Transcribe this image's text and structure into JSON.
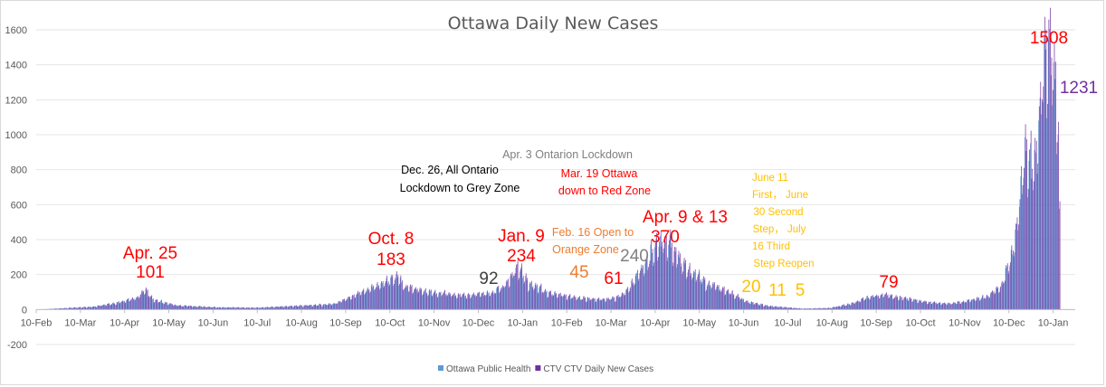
{
  "chart_data": {
    "type": "bar",
    "title": "Ottawa Daily New Cases",
    "xlabel": "",
    "ylabel": "",
    "ylim": [
      -200,
      1600
    ],
    "yticks": [
      -200,
      0,
      200,
      400,
      600,
      800,
      1000,
      1200,
      1400,
      1600
    ],
    "xtick_labels": [
      "10-Feb",
      "10-Mar",
      "10-Apr",
      "10-May",
      "10-Jun",
      "10-Jul",
      "10-Aug",
      "10-Sep",
      "10-Oct",
      "10-Nov",
      "10-Dec",
      "10-Jan",
      "10-Feb",
      "10-Mar",
      "10-Apr",
      "10-May",
      "10-Jun",
      "10-Jul",
      "10-Aug",
      "10-Sep",
      "10-Oct",
      "10-Nov",
      "10-Dec",
      "10-Jan"
    ],
    "grid": true,
    "legend_position": "bottom",
    "series": [
      {
        "name": "Ottawa Public Health",
        "color": "#5b9bd5"
      },
      {
        "name": "CTV CTV Daily New Cases",
        "color": "#7030a0"
      }
    ],
    "profile": [
      [
        0,
        0
      ],
      [
        20,
        8
      ],
      [
        40,
        15
      ],
      [
        60,
        40
      ],
      [
        72,
        65
      ],
      [
        78,
        101
      ],
      [
        84,
        50
      ],
      [
        100,
        22
      ],
      [
        130,
        12
      ],
      [
        160,
        10
      ],
      [
        190,
        20
      ],
      [
        215,
        30
      ],
      [
        235,
        95
      ],
      [
        245,
        125
      ],
      [
        255,
        150
      ],
      [
        260,
        183
      ],
      [
        266,
        120
      ],
      [
        285,
        90
      ],
      [
        310,
        75
      ],
      [
        330,
        92
      ],
      [
        340,
        130
      ],
      [
        348,
        234
      ],
      [
        355,
        150
      ],
      [
        368,
        100
      ],
      [
        380,
        75
      ],
      [
        395,
        60
      ],
      [
        410,
        55
      ],
      [
        420,
        61
      ],
      [
        428,
        100
      ],
      [
        440,
        240
      ],
      [
        448,
        330
      ],
      [
        455,
        370
      ],
      [
        460,
        340
      ],
      [
        470,
        230
      ],
      [
        485,
        140
      ],
      [
        500,
        100
      ],
      [
        515,
        40
      ],
      [
        530,
        20
      ],
      [
        545,
        11
      ],
      [
        555,
        5
      ],
      [
        575,
        8
      ],
      [
        590,
        30
      ],
      [
        605,
        70
      ],
      [
        615,
        79
      ],
      [
        630,
        60
      ],
      [
        645,
        40
      ],
      [
        660,
        30
      ],
      [
        675,
        45
      ],
      [
        690,
        70
      ],
      [
        700,
        130
      ],
      [
        708,
        300
      ],
      [
        713,
        600
      ],
      [
        718,
        880
      ],
      [
        723,
        750
      ],
      [
        728,
        1080
      ],
      [
        733,
        1508
      ],
      [
        737,
        1350
      ],
      [
        740,
        1231
      ],
      [
        742,
        500
      ]
    ],
    "annotations": [
      {
        "text": "Apr. 25",
        "color": "#ff0000"
      },
      {
        "text": "101",
        "color": "#ff0000"
      },
      {
        "text": "Oct. 8",
        "color": "#ff0000"
      },
      {
        "text": "183",
        "color": "#ff0000"
      },
      {
        "text": "92",
        "color": "#404040"
      },
      {
        "text": "Jan. 9",
        "color": "#ff0000"
      },
      {
        "text": "234",
        "color": "#ff0000"
      },
      {
        "text": "Feb. 16 Open to",
        "color": "#ed7d31"
      },
      {
        "text": "Orange Zone",
        "color": "#ed7d31"
      },
      {
        "text": "45",
        "color": "#ed7d31"
      },
      {
        "text": "61",
        "color": "#ff0000"
      },
      {
        "text": "240",
        "color": "#808080"
      },
      {
        "text": "Apr. 9 & 13",
        "color": "#ff0000"
      },
      {
        "text": "370",
        "color": "#ff0000"
      },
      {
        "text": "Apr. 3 Ontarion Lockdown",
        "color": "#808080"
      },
      {
        "text": "Dec. 26, All Ontario",
        "color": "#000000"
      },
      {
        "text": "Lockdown to Grey Zone",
        "color": "#000000"
      },
      {
        "text": "Mar. 19 Ottawa",
        "color": "#ff0000"
      },
      {
        "text": "down to Red Zone",
        "color": "#ff0000"
      },
      {
        "text": "June 11",
        "color": "#ffc000"
      },
      {
        "text": "First， June",
        "color": "#ffc000"
      },
      {
        "text": "30 Second",
        "color": "#ffc000"
      },
      {
        "text": "Step， July",
        "color": "#ffc000"
      },
      {
        "text": "16 Third",
        "color": "#ffc000"
      },
      {
        "text": "Step Reopen",
        "color": "#ffc000"
      },
      {
        "text": "20",
        "color": "#ffc000"
      },
      {
        "text": "11",
        "color": "#ffc000"
      },
      {
        "text": "5",
        "color": "#ffc000"
      },
      {
        "text": "79",
        "color": "#ff0000"
      },
      {
        "text": "1508",
        "color": "#ff0000"
      },
      {
        "text": "1231",
        "color": "#7030a0"
      }
    ]
  }
}
